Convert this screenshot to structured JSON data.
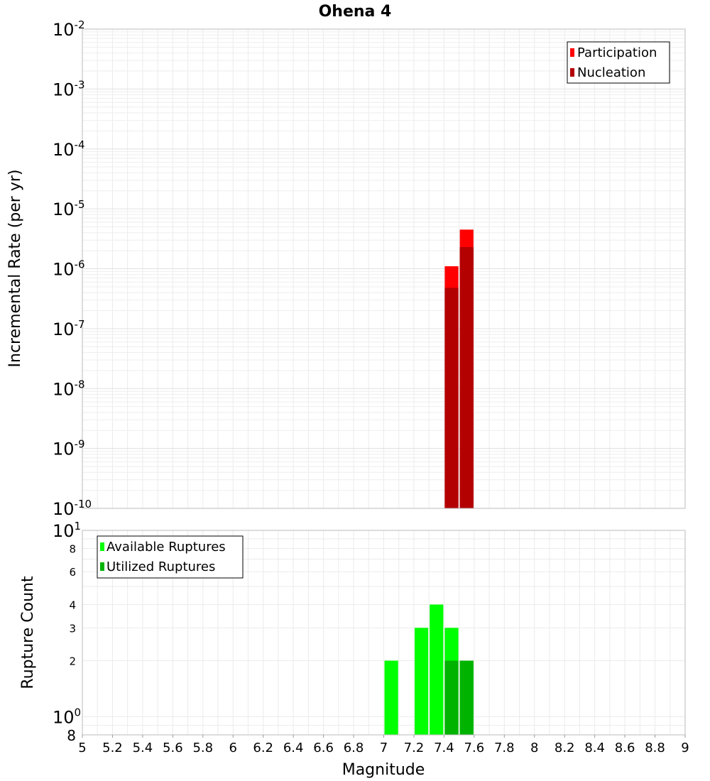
{
  "chart_data": [
    {
      "type": "bar",
      "title": "Ohena 4",
      "xlabel": "",
      "ylabel": "Incremental Rate (per yr)",
      "yscale": "log",
      "xlim": [
        5,
        9
      ],
      "ylim": [
        1e-10,
        0.01
      ],
      "y_ticks": [
        {
          "base": "10",
          "exp": "-2"
        },
        {
          "base": "10",
          "exp": "-3"
        },
        {
          "base": "10",
          "exp": "-4"
        },
        {
          "base": "10",
          "exp": "-5"
        },
        {
          "base": "10",
          "exp": "-6"
        },
        {
          "base": "10",
          "exp": "-7"
        },
        {
          "base": "10",
          "exp": "-8"
        },
        {
          "base": "10",
          "exp": "-9"
        },
        {
          "base": "10",
          "exp": "-10"
        }
      ],
      "bin_width": 0.1,
      "legend_position": "top-right",
      "series": [
        {
          "name": "Participation",
          "color": "#ff0000",
          "x": [
            7.45,
            7.55
          ],
          "values": [
            1.1e-06,
            4.5e-06
          ]
        },
        {
          "name": "Nucleation",
          "color": "#b30000",
          "x": [
            7.45,
            7.55
          ],
          "values": [
            4.8e-07,
            2.3e-06
          ]
        }
      ]
    },
    {
      "type": "bar",
      "xlabel": "Magnitude",
      "ylabel": "Rupture Count",
      "yscale": "log",
      "xlim": [
        5,
        9
      ],
      "ylim": [
        0.8,
        10
      ],
      "x_ticks": [
        "5",
        "5.2",
        "5.4",
        "5.6",
        "5.8",
        "6",
        "6.2",
        "6.4",
        "6.6",
        "6.8",
        "7",
        "7.2",
        "7.4",
        "7.6",
        "7.8",
        "8",
        "8.2",
        "8.4",
        "8.6",
        "8.8",
        "9"
      ],
      "y_ticks": [
        {
          "label": "8"
        },
        {
          "base": "10",
          "exp": "0"
        },
        {
          "label": "2"
        },
        {
          "label": "3"
        },
        {
          "label": "4"
        },
        {
          "label": "6"
        },
        {
          "label": "8"
        },
        {
          "base": "10",
          "exp": "1"
        }
      ],
      "bin_width": 0.1,
      "legend_position": "top-left",
      "series": [
        {
          "name": "Available Ruptures",
          "color": "#00ff00",
          "x": [
            7.05,
            7.25,
            7.35,
            7.45,
            7.55
          ],
          "values": [
            2,
            3,
            4,
            3,
            2
          ]
        },
        {
          "name": "Utilized Ruptures",
          "color": "#00b300",
          "x": [
            7.45,
            7.55
          ],
          "values": [
            2,
            2
          ]
        }
      ]
    }
  ]
}
